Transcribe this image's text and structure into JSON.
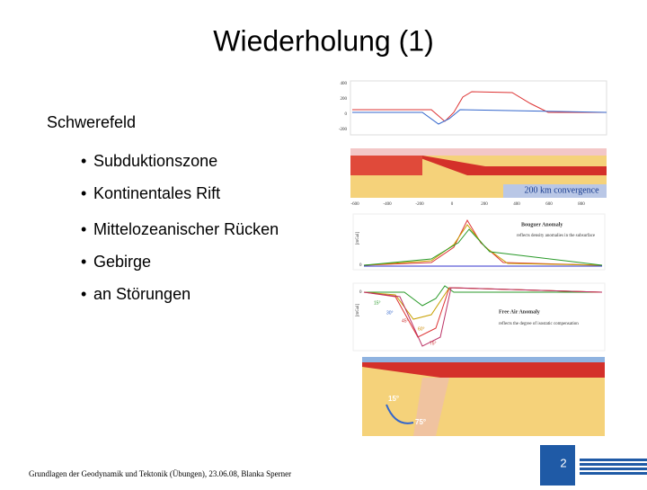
{
  "header": {
    "title": "Wiederholung (1)"
  },
  "body": {
    "heading": "Schwerefeld",
    "bullets": [
      "Subduktionszone",
      "Kontinentales Rift",
      "Mittelozeanischer Rücken",
      "Gebirge",
      "an Störungen"
    ]
  },
  "figures": {
    "profile": {
      "ticks": [
        "400",
        "200",
        "0",
        "-200"
      ]
    },
    "model": {
      "label": "200 km convergence",
      "ticks": [
        "-600",
        "-400",
        "-200",
        "0",
        "200",
        "400",
        "600",
        "800"
      ]
    },
    "bouguer": {
      "title": "Bouguer Anomaly",
      "note": "reflects density anomalies in the subsurface",
      "unit": "[mGal]",
      "zero": "0"
    },
    "freeair": {
      "title": "Free Air Anomaly",
      "note": "reflects the degree of isostatic compensation",
      "unit": "[mGal]",
      "zero": "0",
      "angles": [
        "15°",
        "30°",
        "45°",
        "60°",
        "75°"
      ]
    },
    "slab": {
      "angles": [
        "15°",
        "75°"
      ]
    }
  },
  "footer": {
    "text": "Grundlagen der Geodynamik und Tektonik (Übungen), 23.06.08, Blanka Sperner",
    "page": "2"
  }
}
